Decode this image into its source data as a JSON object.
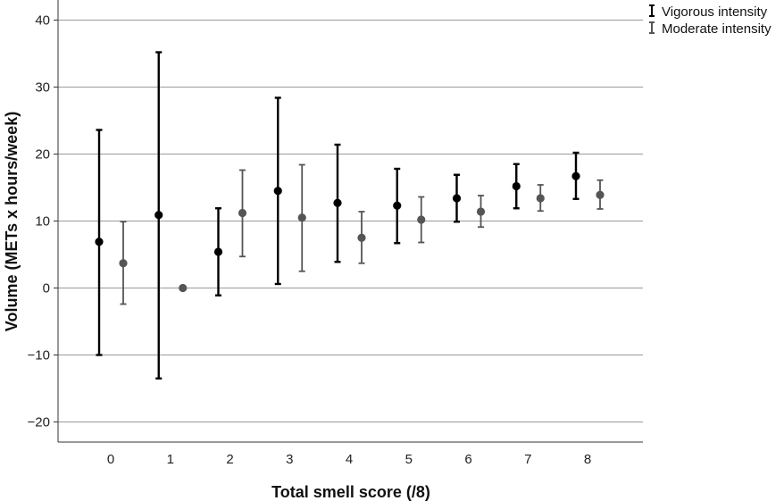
{
  "chart_data": {
    "type": "scatter",
    "title": "",
    "xlabel": "Total smell score (/8)",
    "ylabel": "Volume (METs x hours/week)",
    "categories": [
      "0",
      "1",
      "2",
      "3",
      "4",
      "5",
      "6",
      "7",
      "8"
    ],
    "ylim": [
      -23,
      43
    ],
    "yticks": [
      -20,
      -10,
      0,
      10,
      20,
      30,
      40
    ],
    "grid": "horizontal",
    "legend_position": "top-right",
    "series": [
      {
        "name": "Vigorous intensity",
        "color": "#000000",
        "values": [
          6.9,
          10.9,
          5.4,
          14.5,
          12.7,
          12.3,
          13.4,
          15.2,
          16.7
        ],
        "lower": [
          -10.0,
          -13.5,
          -1.1,
          0.6,
          3.9,
          6.7,
          9.9,
          11.9,
          13.3
        ],
        "upper": [
          23.6,
          35.2,
          11.9,
          28.4,
          21.4,
          17.8,
          16.9,
          18.5,
          20.2
        ]
      },
      {
        "name": "Moderate intensity",
        "color": "#555555",
        "values": [
          3.7,
          0.0,
          11.2,
          10.5,
          7.5,
          10.2,
          11.4,
          13.4,
          13.9
        ],
        "lower": [
          -2.4,
          null,
          4.7,
          2.5,
          3.7,
          6.8,
          9.1,
          11.5,
          11.8
        ],
        "upper": [
          9.9,
          null,
          17.6,
          18.4,
          11.4,
          13.6,
          13.8,
          15.4,
          16.1
        ]
      }
    ]
  }
}
